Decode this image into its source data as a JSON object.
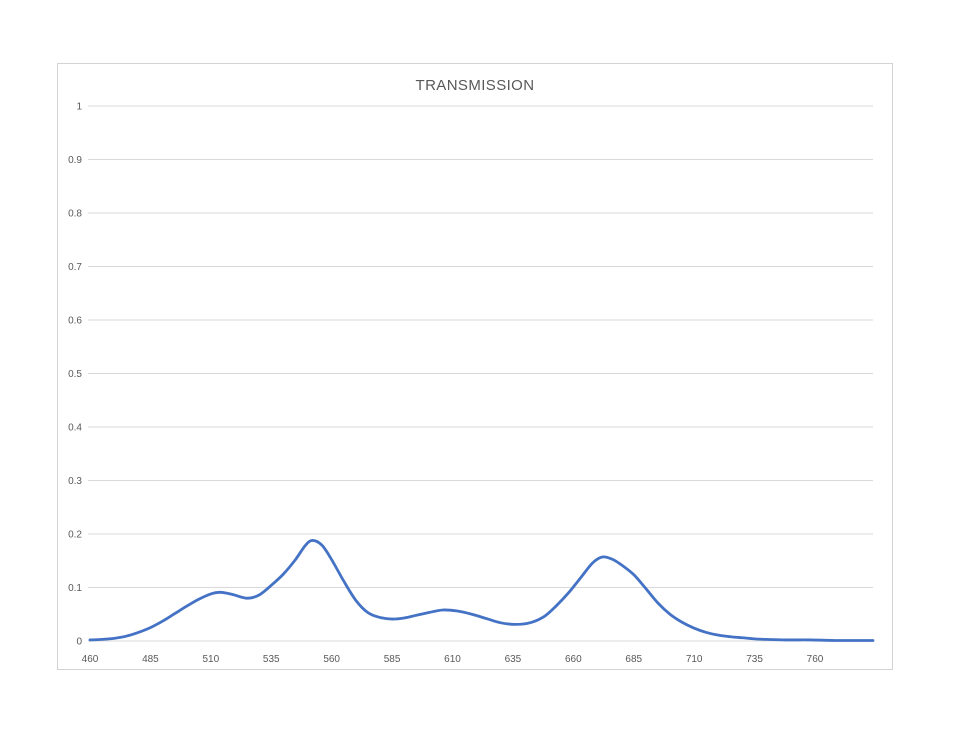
{
  "chart_data": {
    "type": "line",
    "title": "TRANSMISSION",
    "xlabel": "",
    "ylabel": "",
    "xlim": [
      460,
      784
    ],
    "ylim": [
      0,
      1
    ],
    "grid": "horizontal",
    "legend": "none",
    "x_ticks": [
      [
        460,
        "460"
      ],
      [
        485,
        "485"
      ],
      [
        510,
        "510"
      ],
      [
        535,
        "535"
      ],
      [
        560,
        "560"
      ],
      [
        585,
        "585"
      ],
      [
        610,
        "610"
      ],
      [
        635,
        "635"
      ],
      [
        660,
        "660"
      ],
      [
        685,
        "685"
      ],
      [
        710,
        "710"
      ],
      [
        735,
        "735"
      ],
      [
        760,
        "760"
      ]
    ],
    "y_ticks": [
      [
        0,
        "0"
      ],
      [
        0.1,
        "0.1"
      ],
      [
        0.2,
        "0.2"
      ],
      [
        0.3,
        "0.3"
      ],
      [
        0.4,
        "0.4"
      ],
      [
        0.5,
        "0.5"
      ],
      [
        0.6,
        "0.6"
      ],
      [
        0.7,
        "0.7"
      ],
      [
        0.8,
        "0.8"
      ],
      [
        0.9,
        "0.9"
      ],
      [
        1,
        "1"
      ]
    ],
    "series": [
      {
        "name": "Transmission",
        "color": "#4472C4",
        "points": [
          [
            460,
            0.002
          ],
          [
            465,
            0.003
          ],
          [
            470,
            0.005
          ],
          [
            475,
            0.009
          ],
          [
            480,
            0.016
          ],
          [
            485,
            0.025
          ],
          [
            490,
            0.037
          ],
          [
            495,
            0.051
          ],
          [
            500,
            0.065
          ],
          [
            505,
            0.078
          ],
          [
            510,
            0.088
          ],
          [
            514,
            0.091
          ],
          [
            519,
            0.087
          ],
          [
            525,
            0.08
          ],
          [
            530,
            0.086
          ],
          [
            535,
            0.104
          ],
          [
            540,
            0.125
          ],
          [
            545,
            0.152
          ],
          [
            549,
            0.178
          ],
          [
            552,
            0.188
          ],
          [
            556,
            0.179
          ],
          [
            560,
            0.152
          ],
          [
            565,
            0.112
          ],
          [
            570,
            0.076
          ],
          [
            575,
            0.053
          ],
          [
            580,
            0.044
          ],
          [
            585,
            0.041
          ],
          [
            590,
            0.043
          ],
          [
            595,
            0.048
          ],
          [
            600,
            0.053
          ],
          [
            606,
            0.058
          ],
          [
            612,
            0.056
          ],
          [
            618,
            0.05
          ],
          [
            624,
            0.042
          ],
          [
            630,
            0.034
          ],
          [
            636,
            0.031
          ],
          [
            642,
            0.034
          ],
          [
            648,
            0.046
          ],
          [
            653,
            0.066
          ],
          [
            658,
            0.09
          ],
          [
            663,
            0.118
          ],
          [
            668,
            0.146
          ],
          [
            672,
            0.157
          ],
          [
            676,
            0.153
          ],
          [
            680,
            0.142
          ],
          [
            685,
            0.124
          ],
          [
            690,
            0.098
          ],
          [
            695,
            0.071
          ],
          [
            700,
            0.05
          ],
          [
            705,
            0.035
          ],
          [
            710,
            0.024
          ],
          [
            715,
            0.016
          ],
          [
            720,
            0.011
          ],
          [
            725,
            0.008
          ],
          [
            730,
            0.006
          ],
          [
            735,
            0.004
          ],
          [
            740,
            0.003
          ],
          [
            748,
            0.002
          ],
          [
            758,
            0.002
          ],
          [
            768,
            0.001
          ],
          [
            778,
            0.001
          ],
          [
            784,
            0.001
          ]
        ]
      }
    ],
    "colors": {
      "line": "#4472C4",
      "gridline": "#D9D9D9",
      "axis_line": "#D9D9D9",
      "axis_text": "#595959",
      "title_text": "#595959",
      "chart_border": "#D3D3D3",
      "background": "#FFFFFF"
    }
  }
}
